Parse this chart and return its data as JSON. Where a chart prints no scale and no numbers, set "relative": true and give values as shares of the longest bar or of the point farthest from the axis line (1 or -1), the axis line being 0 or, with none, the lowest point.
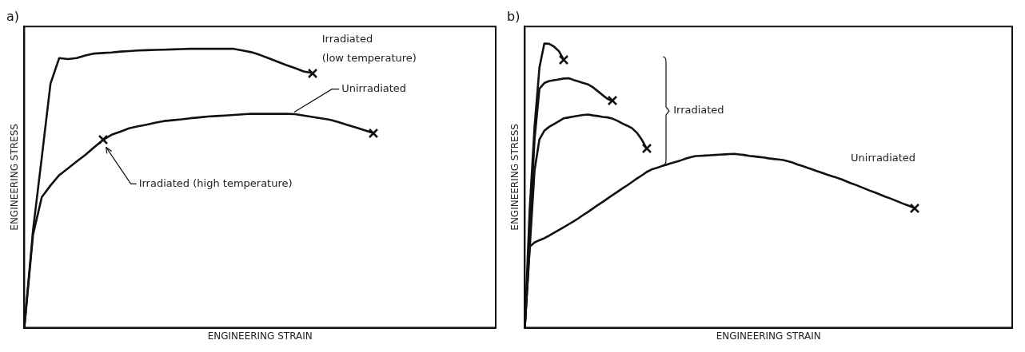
{
  "chart_data": [
    {
      "type": "line",
      "title": "a)",
      "xlabel": "ENGINEERING STRAIN",
      "ylabel": "ENGINEERING STRESS",
      "relative": true,
      "grid": false,
      "legend": false,
      "categories": [
        null,
        null,
        null,
        null,
        null,
        null,
        null,
        null,
        null,
        null,
        null,
        null,
        null,
        null,
        null,
        null,
        null,
        null,
        null,
        null,
        null,
        null,
        null,
        null,
        null,
        null,
        null,
        null,
        null,
        null,
        null,
        null,
        null,
        null,
        null,
        null,
        null,
        null,
        null,
        null,
        null,
        null,
        null,
        null,
        null,
        null,
        null,
        null,
        null,
        null,
        null,
        null,
        null,
        null,
        null
      ],
      "series": [
        {
          "name": "Irradiated (low temperature)",
          "color": "#111111",
          "values": [
            0,
            0.35,
            0.61,
            0.875,
            0.967,
            0.963,
            0.967,
            0.976,
            0.983,
            0.985,
            0.987,
            0.99,
            0.992,
            0.994,
            0.995,
            0.996,
            0.997,
            0.998,
            0.999,
            1,
            1,
            1,
            1,
            1,
            1,
            0.994,
            0.988,
            0.978,
            0.966,
            0.954,
            0.942,
            0.931,
            0.919,
            0.913,
            null,
            null,
            null,
            null,
            null,
            null,
            null,
            null,
            null,
            null,
            null,
            null,
            null,
            null,
            null,
            null,
            null,
            null,
            null,
            null,
            null
          ]
        },
        {
          "name": "Unirradiated",
          "color": "#111111",
          "values": [
            0,
            0.334,
            0.468,
            0.51,
            0.547,
            0.571,
            0.596,
            0.62,
            0.647,
            0.673,
            0.692,
            0.703,
            0.715,
            0.722,
            0.728,
            0.735,
            0.741,
            0.744,
            0.747,
            0.751,
            0.754,
            0.757,
            0.759,
            0.761,
            0.763,
            0.765,
            0.767,
            0.767,
            0.767,
            0.767,
            0.767,
            0.766,
            0.761,
            0.756,
            0.751,
            0.746,
            0.737,
            0.727,
            0.718,
            0.708,
            0.698,
            null,
            null,
            null,
            null,
            null,
            null,
            null,
            null,
            null,
            null,
            null,
            null,
            null,
            null
          ]
        }
      ],
      "annotations": [
        "Irradiated (high temperature)"
      ]
    },
    {
      "type": "line",
      "title": "b)",
      "xlabel": "ENGINEERING STRAIN",
      "ylabel": "ENGINEERING STRESS",
      "relative": true,
      "grid": false,
      "legend": false,
      "categories": [
        null,
        null,
        null,
        null,
        null,
        null,
        null,
        null,
        null,
        null,
        null,
        null,
        null,
        null,
        null,
        null,
        null,
        null,
        null,
        null,
        null,
        null,
        null,
        null,
        null,
        null,
        null,
        null,
        null,
        null,
        null,
        null,
        null,
        null,
        null,
        null,
        null,
        null,
        null,
        null,
        null,
        null,
        null,
        null,
        null,
        null,
        null,
        null,
        null,
        null,
        null,
        null,
        null,
        null,
        null,
        null,
        null,
        null,
        null,
        null,
        null,
        null,
        null,
        null,
        null,
        null,
        null,
        null,
        null,
        null,
        null,
        null,
        null,
        null,
        null,
        null,
        null,
        null,
        null,
        null,
        null,
        null,
        null,
        null,
        null,
        null,
        null,
        null,
        null,
        null,
        null,
        null,
        null,
        null,
        null,
        null,
        null,
        null,
        null,
        null,
        null
      ],
      "series": [
        {
          "color": "#111111",
          "values": [
            0,
            0.416,
            0.708,
            0.915,
            1,
            0.999,
            0.989,
            0.973,
            0.942,
            null,
            null,
            null,
            null,
            null,
            null,
            null,
            null,
            null,
            null,
            null,
            null,
            null,
            null,
            null,
            null,
            null,
            null,
            null,
            null,
            null,
            null,
            null,
            null,
            null,
            null,
            null,
            null,
            null,
            null,
            null,
            null,
            null,
            null,
            null,
            null,
            null,
            null,
            null,
            null,
            null,
            null,
            null,
            null,
            null,
            null,
            null,
            null,
            null,
            null,
            null,
            null,
            null,
            null,
            null,
            null,
            null,
            null,
            null,
            null,
            null,
            null,
            null,
            null,
            null,
            null,
            null,
            null,
            null,
            null,
            null,
            null,
            null,
            null,
            null,
            null,
            null,
            null,
            null,
            null,
            null,
            null,
            null,
            null,
            null,
            null,
            null,
            null,
            null,
            null,
            null,
            null
          ]
        },
        {
          "color": "#111111",
          "values": [
            0,
            0.335,
            0.664,
            0.841,
            0.861,
            0.868,
            0.871,
            0.874,
            0.877,
            0.878,
            0.872,
            0.867,
            0.861,
            0.856,
            0.846,
            0.832,
            0.818,
            0.805,
            0.798,
            null,
            null,
            null,
            null,
            null,
            null,
            null,
            null,
            null,
            null,
            null,
            null,
            null,
            null,
            null,
            null,
            null,
            null,
            null,
            null,
            null,
            null,
            null,
            null,
            null,
            null,
            null,
            null,
            null,
            null,
            null,
            null,
            null,
            null,
            null,
            null,
            null,
            null,
            null,
            null,
            null,
            null,
            null,
            null,
            null,
            null,
            null,
            null,
            null,
            null,
            null,
            null,
            null,
            null,
            null,
            null,
            null,
            null,
            null,
            null,
            null,
            null,
            null,
            null,
            null,
            null,
            null,
            null,
            null,
            null,
            null,
            null,
            null,
            null,
            null,
            null,
            null,
            null,
            null,
            null,
            null,
            null
          ]
        },
        {
          "color": "#111111",
          "values": [
            0,
            0.277,
            0.554,
            0.663,
            0.693,
            0.707,
            0.717,
            0.727,
            0.737,
            0.74,
            0.743,
            0.746,
            0.749,
            0.75,
            0.747,
            0.745,
            0.742,
            0.74,
            0.736,
            0.728,
            0.719,
            0.711,
            0.702,
            0.686,
            0.662,
            0.63,
            null,
            null,
            null,
            null,
            null,
            null,
            null,
            null,
            null,
            null,
            null,
            null,
            null,
            null,
            null,
            null,
            null,
            null,
            null,
            null,
            null,
            null,
            null,
            null,
            null,
            null,
            null,
            null,
            null,
            null,
            null,
            null,
            null,
            null,
            null,
            null,
            null,
            null,
            null,
            null,
            null,
            null,
            null,
            null,
            null,
            null,
            null,
            null,
            null,
            null,
            null,
            null,
            null,
            null,
            null,
            null,
            null,
            null,
            null,
            null,
            null,
            null,
            null,
            null,
            null,
            null,
            null,
            null,
            null,
            null,
            null,
            null,
            null,
            null,
            null
          ]
        },
        {
          "name": "Unirradiated",
          "color": "#111111",
          "values": [
            0,
            0.285,
            0.3,
            0.308,
            0.315,
            0.324,
            0.334,
            0.344,
            0.354,
            0.364,
            0.374,
            0.385,
            0.397,
            0.408,
            0.42,
            0.432,
            0.443,
            0.455,
            0.467,
            0.478,
            0.49,
            0.501,
            0.513,
            0.525,
            0.536,
            0.548,
            0.557,
            0.562,
            0.568,
            0.573,
            0.579,
            0.584,
            0.589,
            0.595,
            0.6,
            0.604,
            0.605,
            0.606,
            0.607,
            0.608,
            0.609,
            0.61,
            0.611,
            0.612,
            0.61,
            0.608,
            0.605,
            0.603,
            0.601,
            0.599,
            0.596,
            0.594,
            0.592,
            0.59,
            0.586,
            0.581,
            0.574,
            0.569,
            0.563,
            0.557,
            0.551,
            0.545,
            0.539,
            0.533,
            0.528,
            0.522,
            0.515,
            0.508,
            0.502,
            0.495,
            0.488,
            0.481,
            0.475,
            0.468,
            0.461,
            0.455,
            0.448,
            0.441,
            0.434,
            0.428,
            0.421,
            null,
            null,
            null,
            null,
            null,
            null,
            null,
            null,
            null,
            null,
            null,
            null,
            null,
            null,
            null,
            null,
            null,
            null,
            null,
            null
          ]
        }
      ],
      "annotations": [
        "Irradiated"
      ]
    }
  ]
}
